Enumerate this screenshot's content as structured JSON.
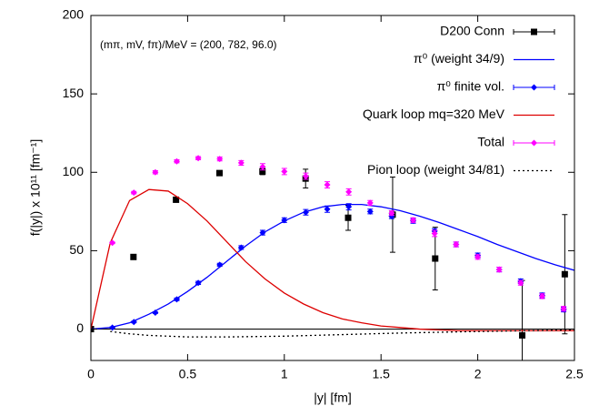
{
  "chart_data": {
    "type": "line",
    "annotation": "(mπ, mV, fπ)/MeV = (200, 782, 96.0)",
    "xlabel": "|y| [fm]",
    "ylabel": "f(|y|) x 10¹¹ [fm⁻¹]",
    "xlim": [
      0,
      2.5
    ],
    "ylim": [
      -20,
      200
    ],
    "xticks": [
      0,
      0.5,
      1,
      1.5,
      2,
      2.5
    ],
    "yticks": [
      0,
      50,
      100,
      150,
      200
    ],
    "zero_line": true,
    "series": [
      {
        "name": "D200 Conn",
        "color": "#000000",
        "style": "points",
        "marker": "square",
        "x": [
          0,
          0.22,
          0.44,
          0.665,
          0.887,
          1.11,
          1.33,
          1.56,
          1.78,
          2.23,
          2.45
        ],
        "values": [
          0,
          46,
          82.5,
          99.5,
          100.5,
          96,
          71,
          73,
          45,
          -4,
          35
        ],
        "errors": [
          0.5,
          1,
          1,
          1,
          2,
          6,
          8,
          24,
          20,
          35,
          38
        ]
      },
      {
        "name": "π⁰ (weight 34/9)",
        "color": "#0000ff",
        "style": "line",
        "x": [
          0,
          0.1,
          0.2,
          0.3,
          0.4,
          0.5,
          0.6,
          0.7,
          0.8,
          0.9,
          1.0,
          1.1,
          1.2,
          1.3,
          1.4,
          1.5,
          1.6,
          1.7,
          1.8,
          1.9,
          2.0,
          2.1,
          2.2,
          2.3,
          2.4,
          2.5
        ],
        "values": [
          0,
          1,
          4,
          9.5,
          16,
          24,
          33,
          43,
          53,
          62,
          69,
          74.5,
          78,
          79.5,
          79.5,
          78,
          75.5,
          72,
          68,
          63.5,
          59,
          54,
          49.5,
          45,
          41,
          37.5
        ]
      },
      {
        "name": "π⁰ finite vol.",
        "color": "#0000ff",
        "style": "points",
        "marker": "diamond",
        "x": [
          0.111,
          0.222,
          0.333,
          0.444,
          0.555,
          0.666,
          0.777,
          0.888,
          1.0,
          1.111,
          1.222,
          1.333,
          1.444,
          1.555,
          1.666,
          1.777,
          1.888,
          2.0,
          2.111,
          2.222,
          2.333,
          2.444
        ],
        "values": [
          1,
          4.5,
          10.5,
          19,
          29.5,
          41,
          52,
          61.5,
          69.5,
          74.5,
          76.5,
          78,
          75,
          72,
          69,
          62.5,
          54,
          47,
          38,
          30.5,
          21.5,
          12.5
        ],
        "errors": [
          0.5,
          0.5,
          0.5,
          0.8,
          1,
          1,
          1.2,
          1.5,
          1.5,
          1.8,
          2,
          2,
          1.5,
          1.5,
          1.5,
          1.5,
          1.5,
          1.5,
          1.5,
          1.5,
          1.5,
          1.5
        ]
      },
      {
        "name": "Quark loop mq=320 MeV",
        "color": "#dd0000",
        "style": "line",
        "x": [
          0,
          0.1,
          0.2,
          0.3,
          0.4,
          0.5,
          0.6,
          0.7,
          0.8,
          0.9,
          1.0,
          1.1,
          1.2,
          1.3,
          1.4,
          1.5,
          1.6,
          1.7,
          1.8,
          1.9,
          2.0,
          2.2,
          2.5
        ],
        "values": [
          0,
          55,
          82,
          89,
          88,
          80,
          69,
          56,
          43,
          32,
          23,
          16,
          10.5,
          6.5,
          4,
          2,
          1,
          0,
          -0.5,
          -1,
          -1,
          -1,
          -1
        ]
      },
      {
        "name": "Total",
        "color": "#ff00ff",
        "style": "points",
        "marker": "diamond",
        "x": [
          0.111,
          0.222,
          0.333,
          0.444,
          0.555,
          0.666,
          0.777,
          0.888,
          1.0,
          1.111,
          1.222,
          1.333,
          1.444,
          1.555,
          1.666,
          1.777,
          1.888,
          2.0,
          2.111,
          2.222,
          2.333,
          2.444
        ],
        "values": [
          55,
          87,
          100,
          107,
          109,
          108.5,
          106,
          103.5,
          100.5,
          97.5,
          92,
          87.5,
          80.5,
          74,
          69.5,
          61,
          54,
          46,
          38,
          29.5,
          21,
          13
        ],
        "errors": [
          0.5,
          0.8,
          1,
          1,
          1,
          1.2,
          1.5,
          2,
          2,
          2,
          2,
          2,
          1.5,
          1.5,
          1.5,
          2,
          1.5,
          1.5,
          1.5,
          1.5,
          1.5,
          1.5
        ]
      },
      {
        "name": "Pion loop (weight 34/81)",
        "color": "#000000",
        "style": "line",
        "dash": true,
        "x": [
          0.1,
          0.2,
          0.3,
          0.5,
          0.7,
          1.0,
          1.3,
          1.6,
          2.0,
          2.5
        ],
        "values": [
          -1.5,
          -3,
          -4,
          -5,
          -5,
          -4.5,
          -3.5,
          -2.5,
          -1.5,
          -0.5
        ]
      }
    ]
  }
}
